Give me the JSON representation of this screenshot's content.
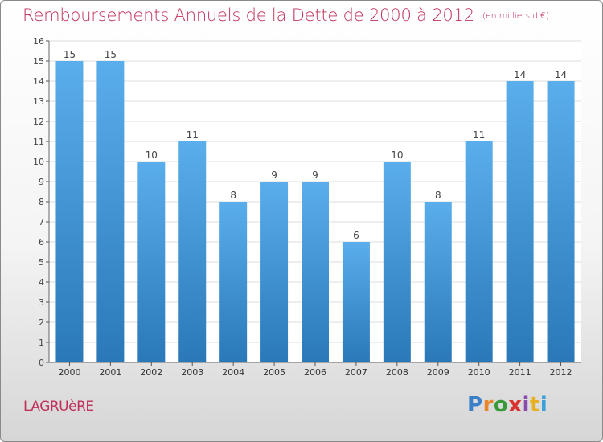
{
  "title": "Remboursements Annuels de la Dette de 2000 à 2012",
  "unit_label": "(en milliers d'€)",
  "commune": "LAGRUèRE",
  "logo": {
    "letters": [
      "P",
      "r",
      "o",
      "x",
      "i",
      "t",
      "i"
    ],
    "colors": [
      "#3a7fc8",
      "#e8862a",
      "#3a9a3a",
      "#d8332e",
      "#8a4bb0",
      "#e8b020",
      "#3aa0d8"
    ]
  },
  "colors": {
    "bar_top": "#5aaeeb",
    "bar_bottom": "#2a78b8",
    "title": "#c0305a",
    "grid": "#dddddd"
  },
  "chart_data": {
    "type": "bar",
    "categories": [
      "2000",
      "2001",
      "2002",
      "2003",
      "2004",
      "2005",
      "2006",
      "2007",
      "2008",
      "2009",
      "2010",
      "2011",
      "2012"
    ],
    "values": [
      15,
      15,
      10,
      11,
      8,
      9,
      9,
      6,
      10,
      8,
      11,
      14,
      14
    ],
    "data_labels": [
      "15",
      "15",
      "10",
      "11",
      "8",
      "9",
      "9",
      "6",
      "10",
      "8",
      "11",
      "14",
      "14"
    ],
    "y_ticks": [
      "0",
      "1",
      "2",
      "3",
      "4",
      "5",
      "6",
      "7",
      "8",
      "9",
      "10",
      "11",
      "12",
      "13",
      "14",
      "15",
      "16"
    ],
    "ylim": [
      0,
      16
    ],
    "grid": true,
    "legend": "none"
  }
}
